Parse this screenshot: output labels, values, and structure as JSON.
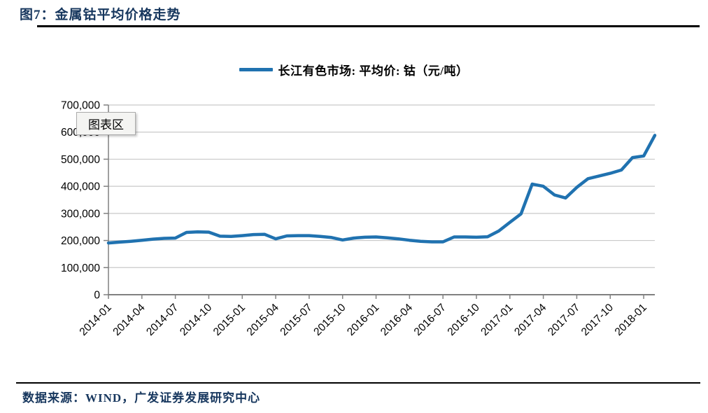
{
  "figure": {
    "title": "图7：金属钴平均价格走势"
  },
  "legend": {
    "label": "长江有色市场: 平均价: 钴（元/吨）"
  },
  "tooltip": {
    "label": "图表区"
  },
  "footer": {
    "source": "数据来源：WIND，广发证券发展研究中心"
  },
  "colors": {
    "line": "#2072B0",
    "title_text": "#17375E",
    "grid": "#C9C9C9",
    "axis": "#808080",
    "tooltip_bg": "#F4F4F2",
    "tooltip_border": "#ABABAB"
  },
  "chart_data": {
    "type": "line",
    "title": "",
    "series_label": "长江有色市场: 平均价: 钴（元/吨）",
    "unit": "元/吨",
    "xlabel": "",
    "ylabel": "",
    "grid": "horizontal",
    "legend_position": "top-center",
    "ylim": [
      0,
      700000
    ],
    "y_ticks": [
      0,
      100000,
      200000,
      300000,
      400000,
      500000,
      600000,
      700000
    ],
    "x_tick_labels": [
      "2014-01",
      "2014-04",
      "2014-07",
      "2014-10",
      "2015-01",
      "2015-04",
      "2015-07",
      "2015-10",
      "2016-01",
      "2016-04",
      "2016-07",
      "2016-10",
      "2017-01",
      "2017-04",
      "2017-07",
      "2017-10",
      "2018-01"
    ],
    "x": [
      "2014-01",
      "2014-02",
      "2014-03",
      "2014-04",
      "2014-05",
      "2014-06",
      "2014-07",
      "2014-08",
      "2014-09",
      "2014-10",
      "2014-11",
      "2014-12",
      "2015-01",
      "2015-02",
      "2015-03",
      "2015-04",
      "2015-05",
      "2015-06",
      "2015-07",
      "2015-08",
      "2015-09",
      "2015-10",
      "2015-11",
      "2015-12",
      "2016-01",
      "2016-02",
      "2016-03",
      "2016-04",
      "2016-05",
      "2016-06",
      "2016-07",
      "2016-08",
      "2016-09",
      "2016-10",
      "2016-11",
      "2016-12",
      "2017-01",
      "2017-02",
      "2017-03",
      "2017-04",
      "2017-05",
      "2017-06",
      "2017-07",
      "2017-08",
      "2017-09",
      "2017-10",
      "2017-11",
      "2017-12",
      "2018-01",
      "2018-02"
    ],
    "values": [
      191000,
      194000,
      197000,
      201000,
      205000,
      208000,
      209000,
      230000,
      232000,
      231000,
      216000,
      215000,
      218000,
      222000,
      223000,
      206000,
      217000,
      218000,
      218000,
      215000,
      211000,
      202000,
      209000,
      212000,
      213000,
      210000,
      206000,
      201000,
      197000,
      195000,
      195000,
      213000,
      213000,
      212000,
      214000,
      235000,
      267000,
      298000,
      408000,
      400000,
      368000,
      357000,
      396000,
      428000,
      438000,
      448000,
      460000,
      506000,
      512000,
      588000
    ]
  }
}
